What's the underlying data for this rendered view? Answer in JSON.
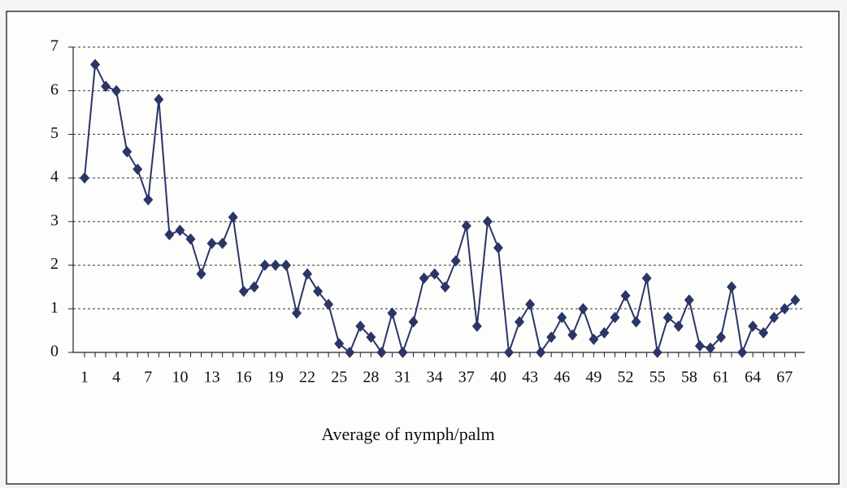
{
  "chart_data": {
    "type": "line",
    "x_label": "Average of nymph/palm",
    "categories": [
      1,
      null,
      null,
      4,
      null,
      null,
      7,
      null,
      null,
      10,
      null,
      null,
      13,
      null,
      null,
      16,
      null,
      null,
      19,
      null,
      null,
      22,
      null,
      null,
      25,
      null,
      null,
      28,
      null,
      null,
      31,
      null,
      null,
      34,
      null,
      null,
      37,
      null,
      null,
      40,
      null,
      null,
      43,
      null,
      null,
      46,
      null,
      null,
      49,
      null,
      null,
      52,
      null,
      null,
      55,
      null,
      null,
      58,
      null,
      null,
      61,
      null,
      null,
      64,
      null,
      null,
      67,
      null
    ],
    "series": [
      {
        "color": "#2b3566",
        "values": [
          4.0,
          6.6,
          6.1,
          6.0,
          4.6,
          4.2,
          3.5,
          5.8,
          2.7,
          2.8,
          2.6,
          1.8,
          2.5,
          2.5,
          3.1,
          1.4,
          1.5,
          2.0,
          2.0,
          2.0,
          0.9,
          1.8,
          1.4,
          1.1,
          0.2,
          0,
          0.6,
          0.35,
          0,
          0.9,
          0,
          0.7,
          1.7,
          1.8,
          1.5,
          2.1,
          2.9,
          0.6,
          3.0,
          2.4,
          0,
          0.7,
          1.1,
          0,
          0.35,
          0.8,
          0.4,
          1.0,
          0.3,
          0.45,
          0.8,
          1.3,
          0.7,
          1.7,
          0,
          0.8,
          0.6,
          1.2,
          0.15,
          0.1,
          0.35,
          1.5,
          0,
          0.6,
          0.45,
          0.8,
          1.0,
          1.2
        ]
      }
    ],
    "ylim": [
      0,
      7
    ],
    "yticks": [
      0,
      1,
      2,
      3,
      4,
      5,
      6,
      7
    ],
    "grid": true
  }
}
